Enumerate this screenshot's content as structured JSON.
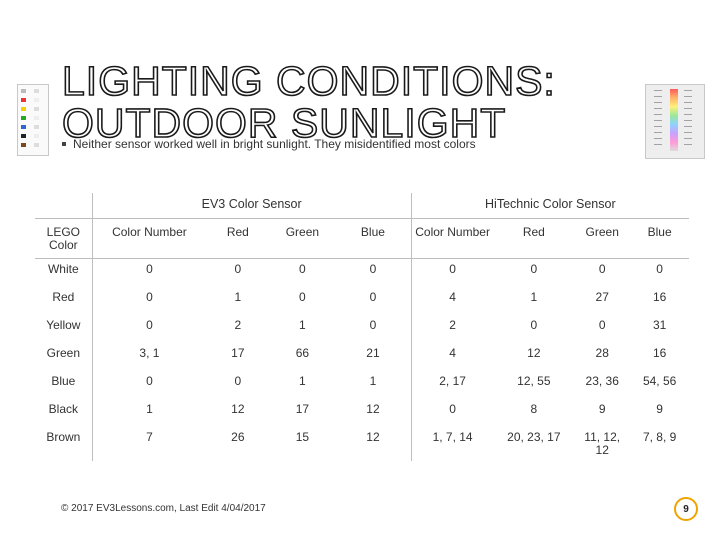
{
  "slide": {
    "title_line1": "LIGHTING CONDITIONS:",
    "title_line2": "OUTDOOR SUNLIGHT",
    "bullet": "Neither sensor worked well in bright sunlight. They misidentified most colors",
    "footer": "© 2017 EV3Lessons.com, Last Edit 4/04/2017",
    "page_number": "9",
    "accent_color": "#f0a400"
  },
  "table": {
    "group_headers": [
      "EV3 Color Sensor",
      "HiTechnic Color Sensor"
    ],
    "columns": [
      "LEGO Color",
      "Color Number",
      "Red",
      "Green",
      "Blue",
      "Color Number",
      "Red",
      "Green",
      "Blue"
    ],
    "rows": [
      [
        "White",
        "0",
        "0",
        "0",
        "0",
        "0",
        "0",
        "0",
        "0"
      ],
      [
        "Red",
        "0",
        "1",
        "0",
        "0",
        "4",
        "1",
        "27",
        "16"
      ],
      [
        "Yellow",
        "0",
        "2",
        "1",
        "0",
        "2",
        "0",
        "0",
        "31"
      ],
      [
        "Green",
        "3, 1",
        "17",
        "66",
        "21",
        "4",
        "12",
        "28",
        "16"
      ],
      [
        "Blue",
        "0",
        "0",
        "1",
        "1",
        "2, 17",
        "12, 55",
        "23, 36",
        "54, 56"
      ],
      [
        "Black",
        "1",
        "12",
        "17",
        "12",
        "0",
        "8",
        "9",
        "9"
      ],
      [
        "Brown",
        "7",
        "26",
        "15",
        "12",
        "1, 7, 14",
        "20, 23, 17",
        "11, 12, 12",
        "7, 8, 9"
      ]
    ]
  }
}
